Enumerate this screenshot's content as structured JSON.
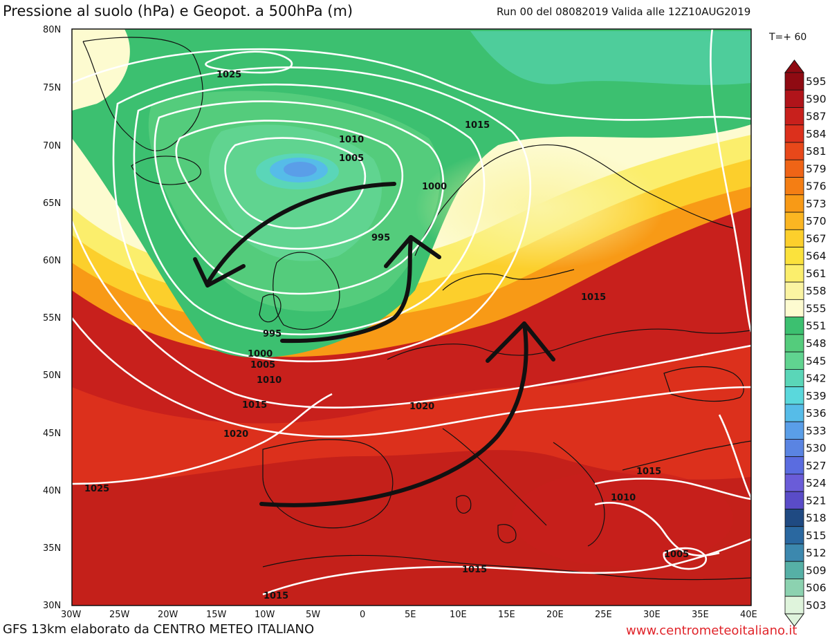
{
  "header": {
    "title": "Pressione al suolo (hPa) e Geopot. a 500hPa (m)",
    "run_info": "Run 00 del 08082019  Valida alle 12Z10AUG2019",
    "forecast_step": "T=+ 60"
  },
  "footer": {
    "model_credit": "GFS 13km elaborato da CENTRO METEO ITALIANO",
    "website": "www.centrometeoitaliano.it"
  },
  "map": {
    "lat_labels": [
      "80N",
      "75N",
      "70N",
      "65N",
      "60N",
      "55N",
      "50N",
      "45N",
      "40N",
      "35N",
      "30N"
    ],
    "lon_labels": [
      "30W",
      "25W",
      "20W",
      "15W",
      "10W",
      "5W",
      "0",
      "5E",
      "10E",
      "15E",
      "20E",
      "25E",
      "30E",
      "35E",
      "40E"
    ],
    "isobar_labels": [
      "1025",
      "1010",
      "1005",
      "1015",
      "1000",
      "995",
      "995",
      "1000",
      "1005",
      "1010",
      "1015",
      "1020",
      "1020",
      "1015",
      "1025",
      "1015",
      "1010",
      "1005",
      "1015",
      "1015"
    ],
    "annotations": [
      "flow-arrow-west",
      "flow-arrow-north",
      "flow-arrow-northeast"
    ]
  },
  "legend": {
    "values": [
      "595",
      "590",
      "587",
      "584",
      "581",
      "579",
      "576",
      "573",
      "570",
      "567",
      "564",
      "561",
      "558",
      "555",
      "551",
      "548",
      "545",
      "542",
      "539",
      "536",
      "533",
      "530",
      "527",
      "524",
      "521",
      "518",
      "515",
      "512",
      "509",
      "506",
      "503"
    ],
    "colors": [
      "#8f0a12",
      "#b0141a",
      "#c8201c",
      "#dc301c",
      "#e8481a",
      "#ef6416",
      "#f47e14",
      "#f89a16",
      "#fbb622",
      "#fccf2c",
      "#fbe23c",
      "#fbee6c",
      "#fbf4a2",
      "#fdfbd0",
      "#3cc070",
      "#54cc7c",
      "#60d490",
      "#5ad6b8",
      "#5ad8dc",
      "#56bce8",
      "#5a9ee8",
      "#5a84e2",
      "#5a6ce0",
      "#6a5cd8",
      "#5a4cc8",
      "#1f4a82",
      "#2a68a0",
      "#3c88ae",
      "#56b0a6",
      "#8cd2b0",
      "#dff4dc"
    ]
  }
}
